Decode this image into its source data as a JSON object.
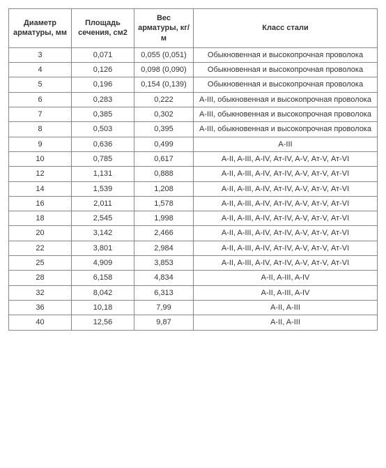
{
  "table": {
    "columns": [
      "Диаметр арматуры, мм",
      "Площадь сечения, см2",
      "Вес арматуры, кг/м",
      "Класс стали"
    ],
    "rows": [
      [
        "3",
        "0,071",
        "0,055 (0,051)",
        "Обыкновенная и высокопрочная проволока"
      ],
      [
        "4",
        "0,126",
        "0,098 (0,090)",
        "Обыкновенная и высокопрочная проволока"
      ],
      [
        "5",
        "0,196",
        "0,154 (0,139)",
        "Обыкновенная и высокопрочная проволока"
      ],
      [
        "6",
        "0,283",
        "0,222",
        "A-III, обыкновенная и высокопрочная проволока"
      ],
      [
        "7",
        "0,385",
        "0,302",
        "A-III, обыкновенная и высокопрочная проволока"
      ],
      [
        "8",
        "0,503",
        "0,395",
        "A-III, обыкновенная и высокопрочная проволока"
      ],
      [
        "9",
        "0,636",
        "0,499",
        "A-III"
      ],
      [
        "10",
        "0,785",
        "0,617",
        "A-II, A-III, A-IV, Ат-IV, A-V, Ат-V, Ат-VI"
      ],
      [
        "12",
        "1,131",
        "0,888",
        "A-II, A-III, A-IV, Ат-IV, A-V, Ат-V, Ат-VI"
      ],
      [
        "14",
        "1,539",
        "1,208",
        "A-II, A-III, A-IV, Ат-IV, A-V, Ат-V, Ат-VI"
      ],
      [
        "16",
        "2,011",
        "1,578",
        "A-II, A-III, A-IV, Ат-IV, A-V, Ат-V, Ат-VI"
      ],
      [
        "18",
        "2,545",
        "1,998",
        "A-II, A-III, A-IV, Ат-IV, A-V, Ат-V, Ат-VI"
      ],
      [
        "20",
        "3,142",
        "2,466",
        "A-II, A-III, A-IV, Ат-IV, A-V, Ат-V, Ат-VI"
      ],
      [
        "22",
        "3,801",
        "2,984",
        "A-II, A-III, A-IV, Ат-IV, A-V, Ат-V, Ат-VI"
      ],
      [
        "25",
        "4,909",
        "3,853",
        "A-II, A-III, A-IV, Ат-IV, A-V, Ат-V, Ат-VI"
      ],
      [
        "28",
        "6,158",
        "4,834",
        "A-II, A-III, A-IV"
      ],
      [
        "32",
        "8,042",
        "6,313",
        "A-II, A-III, A-IV"
      ],
      [
        "36",
        "10,18",
        "7,99",
        "A-II, A-III"
      ],
      [
        "40",
        "12,56",
        "9,87",
        "A-II, A-III"
      ]
    ],
    "header_fontsize": 11,
    "cell_fontsize": 11,
    "border_color": "#888888",
    "background_color": "#ffffff",
    "text_color": "#333333"
  }
}
